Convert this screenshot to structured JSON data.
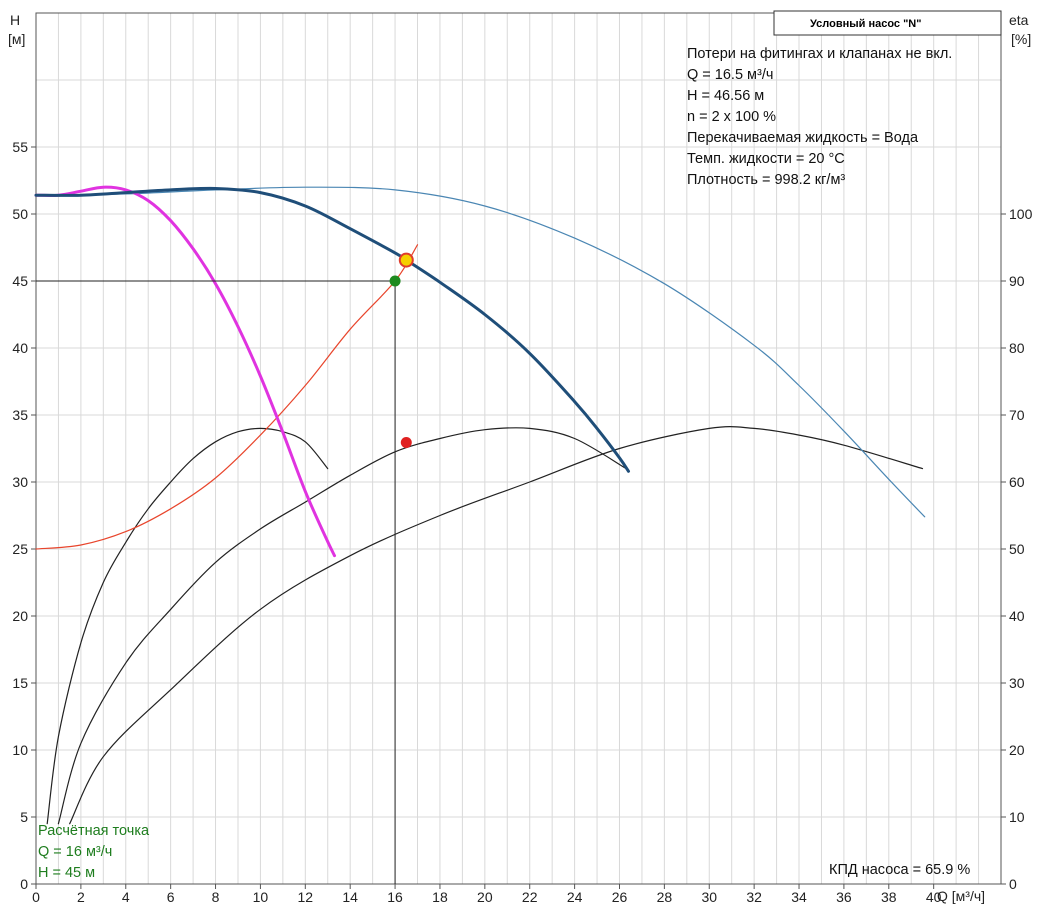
{
  "chart_data": {
    "type": "line",
    "title_box": "Условный насос \"N\"",
    "info_lines": [
      "Потери на фитингах и клапанах не вкл.",
      "Q = 16.5 м³/ч",
      "H = 46.56 м",
      "n = 2 x 100 %",
      "Перекачиваемая жидкость = Вода",
      "Темп. жидкости = 20 °C",
      "Плотность = 998.2 кг/м³"
    ],
    "design_point": {
      "lines": [
        "Расчётная точка",
        "Q = 16 м³/ч",
        "H = 45 м"
      ],
      "Q": 16,
      "H": 45
    },
    "efficiency_label": "КПД насоса = 65.9 %",
    "y_left_label": [
      "H",
      "[м]"
    ],
    "y_right_label": [
      "eta",
      "[%]"
    ],
    "x_label": "Q [м³/ч]",
    "xlim": [
      0,
      43
    ],
    "ylim_left": [
      0,
      65
    ],
    "ylim_right": [
      0,
      130
    ],
    "x_ticks": [
      "0",
      "2",
      "4",
      "6",
      "8",
      "10",
      "12",
      "14",
      "16",
      "18",
      "20",
      "22",
      "24",
      "26",
      "28",
      "30",
      "32",
      "34",
      "36",
      "38",
      "40"
    ],
    "y_left_ticks": [
      "0",
      "5",
      "10",
      "15",
      "20",
      "25",
      "30",
      "35",
      "40",
      "45",
      "50",
      "55"
    ],
    "y_right_ticks": [
      "0",
      "10",
      "20",
      "30",
      "40",
      "50",
      "60",
      "70",
      "80",
      "90",
      "100"
    ],
    "grid": true,
    "colors": {
      "pump_curve_selected": "#1f4e79",
      "pump_curve_parallel": "#4a86b3",
      "pump_curve_single": "#e033e0",
      "system_curve": "#e8452c",
      "efficiency": "#222222",
      "operating_point": "#f5d000",
      "operating_point_ring": "#e03c2c",
      "design_point": "#1e8a1e",
      "efficiency_point": "#e02020",
      "grid": "#d9d9d9"
    },
    "series": [
      {
        "key": "single_pump_head",
        "axis": "left",
        "points": [
          [
            0,
            51.4
          ],
          [
            1,
            51.4
          ],
          [
            2,
            51.7
          ],
          [
            3,
            52.0
          ],
          [
            4,
            51.8
          ],
          [
            5,
            51.0
          ],
          [
            6,
            49.5
          ],
          [
            7,
            47.4
          ],
          [
            8,
            44.8
          ],
          [
            9,
            41.6
          ],
          [
            10,
            37.9
          ],
          [
            11,
            33.7
          ],
          [
            12,
            29.3
          ],
          [
            12.9,
            25.9
          ],
          [
            13.3,
            24.5
          ]
        ]
      },
      {
        "key": "selected_head",
        "axis": "left",
        "points": [
          [
            0,
            51.4
          ],
          [
            2,
            51.4
          ],
          [
            4,
            51.6
          ],
          [
            6,
            51.8
          ],
          [
            8,
            51.9
          ],
          [
            10,
            51.6
          ],
          [
            12,
            50.6
          ],
          [
            14,
            48.9
          ],
          [
            16,
            47.1
          ],
          [
            16.5,
            46.56
          ],
          [
            18,
            44.9
          ],
          [
            20,
            42.5
          ],
          [
            22,
            39.6
          ],
          [
            24,
            36.0
          ],
          [
            25,
            34.0
          ],
          [
            26,
            31.8
          ],
          [
            26.4,
            30.8
          ]
        ]
      },
      {
        "key": "parallel_head",
        "axis": "left",
        "points": [
          [
            0,
            51.4
          ],
          [
            4,
            51.5
          ],
          [
            8,
            51.8
          ],
          [
            12,
            52.0
          ],
          [
            16,
            51.8
          ],
          [
            20,
            50.6
          ],
          [
            24,
            48.2
          ],
          [
            28,
            44.8
          ],
          [
            32,
            40.2
          ],
          [
            34,
            37.2
          ],
          [
            36,
            33.8
          ],
          [
            38,
            30.2
          ],
          [
            39.6,
            27.4
          ]
        ]
      },
      {
        "key": "system_curve",
        "axis": "left",
        "points": [
          [
            0,
            25.0
          ],
          [
            2,
            25.3
          ],
          [
            4,
            26.3
          ],
          [
            6,
            28.0
          ],
          [
            8,
            30.3
          ],
          [
            10,
            33.5
          ],
          [
            12,
            37.2
          ],
          [
            14,
            41.4
          ],
          [
            16,
            45.0
          ],
          [
            17,
            47.7
          ]
        ]
      },
      {
        "key": "eta_single",
        "axis": "right",
        "points": [
          [
            0.5,
            9
          ],
          [
            1,
            22
          ],
          [
            2,
            36
          ],
          [
            3,
            45
          ],
          [
            4,
            51
          ],
          [
            5,
            56
          ],
          [
            6,
            60
          ],
          [
            7,
            63.5
          ],
          [
            8,
            66
          ],
          [
            9,
            67.5
          ],
          [
            10,
            68
          ],
          [
            11,
            67.5
          ],
          [
            12,
            66
          ],
          [
            13,
            62
          ]
        ]
      },
      {
        "key": "eta_selected",
        "axis": "right",
        "points": [
          [
            1,
            9
          ],
          [
            2,
            21
          ],
          [
            4,
            33
          ],
          [
            6,
            41
          ],
          [
            8,
            48
          ],
          [
            10,
            53
          ],
          [
            12,
            57
          ],
          [
            14,
            61
          ],
          [
            16,
            64.5
          ],
          [
            18,
            66.5
          ],
          [
            20,
            67.8
          ],
          [
            22,
            68
          ],
          [
            24,
            66.5
          ],
          [
            26.3,
            62
          ]
        ]
      },
      {
        "key": "eta_parallel",
        "axis": "right",
        "points": [
          [
            1.5,
            9
          ],
          [
            3,
            19
          ],
          [
            6,
            29
          ],
          [
            10,
            41
          ],
          [
            14,
            49
          ],
          [
            18,
            55
          ],
          [
            22,
            60
          ],
          [
            26,
            65
          ],
          [
            30,
            68
          ],
          [
            32,
            68
          ],
          [
            34,
            67
          ],
          [
            36,
            65.5
          ],
          [
            39.5,
            62
          ]
        ]
      }
    ],
    "points": {
      "operating": {
        "Q": 16.5,
        "H": 46.56
      },
      "design": {
        "Q": 16,
        "H": 45
      },
      "efficiency": {
        "Q": 16.5,
        "eta": 65.9
      }
    }
  }
}
